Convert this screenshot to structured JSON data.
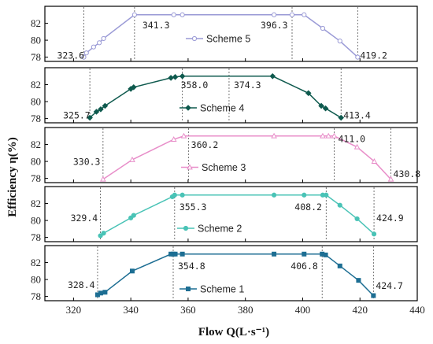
{
  "chart_data": {
    "type": "line",
    "xlabel": "Flow Q(L·s⁻¹)",
    "ylabel": "Efficiency η(%)",
    "xlim": [
      310,
      440
    ],
    "xticks": [
      "320",
      "340",
      "360",
      "380",
      "400",
      "420",
      "440"
    ],
    "ylim": [
      77.5,
      84
    ],
    "yticks": [
      "78",
      "80",
      "82"
    ],
    "panels": [
      {
        "name": "Scheme 5",
        "color": "#9a9ad6",
        "marker": "open-circle",
        "x": [
          323.6,
          324.5,
          327,
          329,
          330.5,
          341.3,
          355,
          358,
          390,
          396.3,
          400.5,
          407,
          413,
          419.2
        ],
        "y": [
          78.0,
          78.5,
          79.2,
          79.7,
          80.2,
          83.0,
          83.0,
          83.0,
          83.0,
          83.0,
          83.0,
          81.4,
          79.9,
          78.0
        ],
        "vlines": [
          323.6,
          341.3,
          396.3,
          419.2
        ],
        "annotations": [
          "323.6",
          "341.3",
          "396.3",
          "419.2"
        ]
      },
      {
        "name": "Scheme 4",
        "color": "#0f5a4e",
        "marker": "filled-diamond",
        "x": [
          325.7,
          328,
          329.5,
          331,
          340,
          341,
          354,
          355.5,
          358,
          389.5,
          402,
          406.5,
          408,
          413.4
        ],
        "y": [
          78.1,
          78.8,
          79.1,
          79.5,
          81.5,
          81.7,
          82.8,
          82.9,
          83.0,
          83.0,
          81.0,
          79.5,
          79.2,
          78.1
        ],
        "vlines": [
          325.7,
          358.0,
          374.3,
          413.4
        ],
        "annotations": [
          "325.7",
          "358.0",
          "374.3",
          "413.4"
        ]
      },
      {
        "name": "Scheme 3",
        "color": "#e88ec9",
        "marker": "open-triangle",
        "x": [
          330.3,
          340.5,
          355,
          358.5,
          390,
          407,
          409,
          411,
          419,
          425,
          430.8
        ],
        "y": [
          77.9,
          80.2,
          82.6,
          83.0,
          83.0,
          83.0,
          83.0,
          83.0,
          81.7,
          80.0,
          77.9
        ],
        "vlines": [
          330.3,
          360.2,
          411.0,
          430.8
        ],
        "annotations": [
          "330.3",
          "360.2",
          "411.0",
          "430.8"
        ]
      },
      {
        "name": "Scheme 2",
        "color": "#49c3b6",
        "marker": "filled-circle",
        "x": [
          329.4,
          330.5,
          340,
          341,
          354.5,
          355.3,
          358,
          390,
          400.5,
          407,
          408.2,
          413,
          419,
          424.9
        ],
        "y": [
          78.2,
          78.5,
          80.3,
          80.6,
          82.8,
          83.0,
          83.0,
          83.0,
          83.0,
          83.0,
          83.0,
          81.8,
          80.2,
          78.4
        ],
        "vlines": [
          329.4,
          355.3,
          408.2,
          424.9
        ],
        "annotations": [
          "329.4",
          "355.3",
          "408.2",
          "424.9"
        ]
      },
      {
        "name": "Scheme 1",
        "color": "#1d6e93",
        "marker": "filled-square",
        "x": [
          328.4,
          329.5,
          331,
          340.5,
          354,
          354.8,
          355.5,
          358,
          390,
          400.5,
          406.8,
          408,
          413,
          419.5,
          424.7
        ],
        "y": [
          78.2,
          78.4,
          78.5,
          81.0,
          83.0,
          83.0,
          83.0,
          83.0,
          83.0,
          83.0,
          83.0,
          82.9,
          81.6,
          79.9,
          78.1
        ],
        "vlines": [
          328.4,
          354.8,
          406.8,
          424.7
        ],
        "annotations": [
          "328.4",
          "354.8",
          "406.8",
          "424.7"
        ]
      }
    ]
  }
}
